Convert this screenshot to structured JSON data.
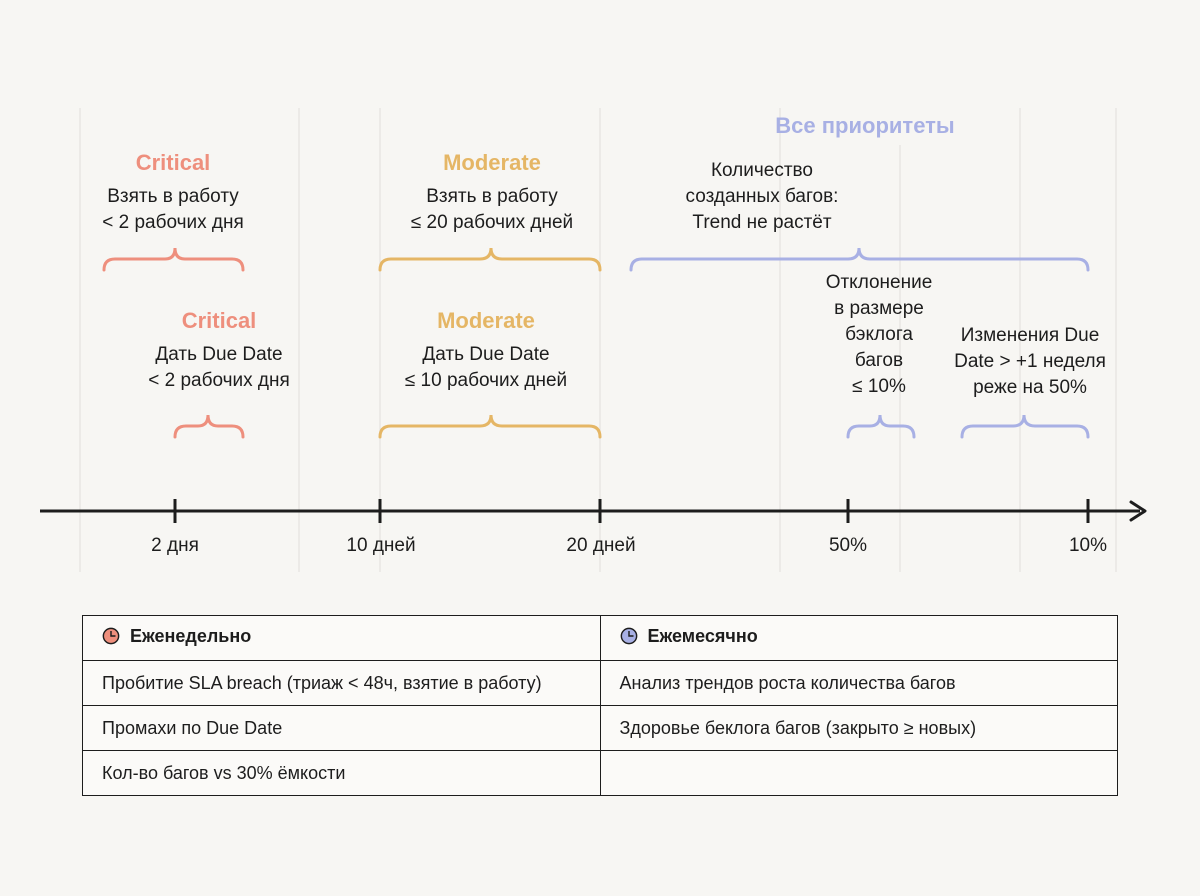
{
  "palette": {
    "critical": "#ee8f7d",
    "moderate": "#e5b665",
    "all": "#a8b0e4",
    "axis": "#1d1d1d",
    "grid": "#e4e3df"
  },
  "timeline": {
    "ticks": [
      "2 дня",
      "10 дней",
      "20 дней",
      "50%",
      "10%"
    ]
  },
  "top_row": [
    {
      "category": "Critical",
      "line1": "Взять в работу",
      "line2": "< 2 рабочих дня"
    },
    {
      "category": "Moderate",
      "line1": "Взять в работу",
      "line2": "≤ 20 рабочих дней"
    }
  ],
  "all_priorities": {
    "title": "Все приоритеты",
    "main_lines": [
      "Количество",
      "созданных багов:",
      "Trend не растёт"
    ],
    "sub1_lines": [
      "Отклонение",
      "в размере",
      "бэклога",
      "багов",
      "≤ 10%"
    ],
    "sub2_lines": [
      "Изменения Due",
      "Date > +1 неделя",
      "реже на 50%"
    ]
  },
  "bottom_row": [
    {
      "category": "Critical",
      "line1": "Дать Due Date",
      "line2": "< 2 рабочих дня"
    },
    {
      "category": "Moderate",
      "line1": "Дать Due Date",
      "line2": "≤ 10 рабочих дней"
    }
  ],
  "table": {
    "weekly_title": "Еженедельно",
    "monthly_title": "Ежемесячно",
    "rows": [
      [
        "Пробитие SLA breach (триаж < 48ч, взятие в работу)",
        "Анализ трендов роста количества багов"
      ],
      [
        "Промахи по Due Date",
        "Здоровье беклога багов (закрыто ≥ новых)"
      ],
      [
        "Кол-во багов vs 30% ёмкости",
        ""
      ]
    ]
  }
}
